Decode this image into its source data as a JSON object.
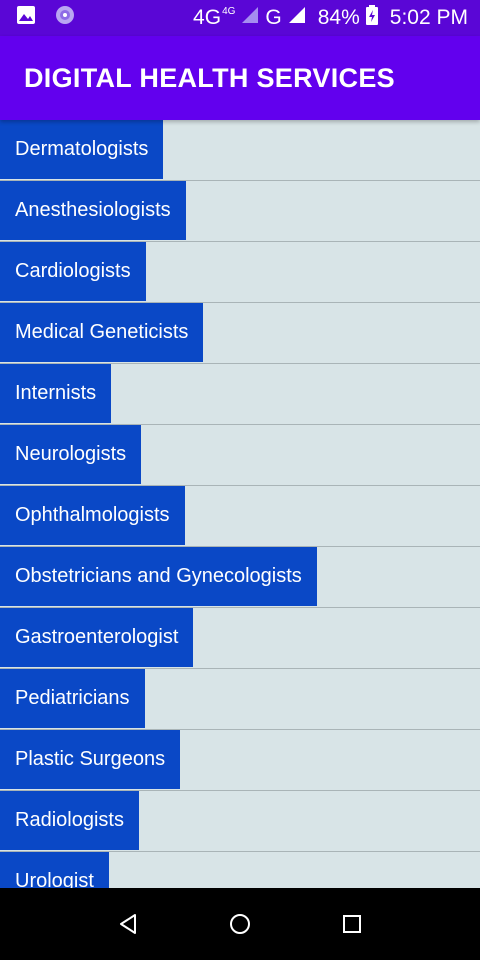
{
  "status_bar": {
    "network_label": "4G",
    "network_superscript": "4G",
    "network_label_2": "G",
    "battery_percent": "84%",
    "time": "5:02 PM"
  },
  "app_bar": {
    "title": "DIGITAL HEALTH SERVICES"
  },
  "list": {
    "items": [
      {
        "label": "Dermatologists"
      },
      {
        "label": "Anesthesiologists"
      },
      {
        "label": "Cardiologists"
      },
      {
        "label": "Medical Geneticists"
      },
      {
        "label": "Internists"
      },
      {
        "label": "Neurologists"
      },
      {
        "label": "Ophthalmologists"
      },
      {
        "label": "Obstetricians and Gynecologists"
      },
      {
        "label": "Gastroenterologist"
      },
      {
        "label": "Pediatricians"
      },
      {
        "label": "Plastic Surgeons"
      },
      {
        "label": "Radiologists"
      },
      {
        "label": "Urologist"
      }
    ]
  },
  "colors": {
    "status_bar": "#5a06d6",
    "app_bar": "#6200ee",
    "item_button": "#0a48c6",
    "list_background": "#d8e4e7"
  },
  "icons": [
    "image-icon",
    "settings-circle-icon",
    "signal-icon",
    "battery-icon",
    "back-icon",
    "home-icon",
    "recents-icon"
  ]
}
